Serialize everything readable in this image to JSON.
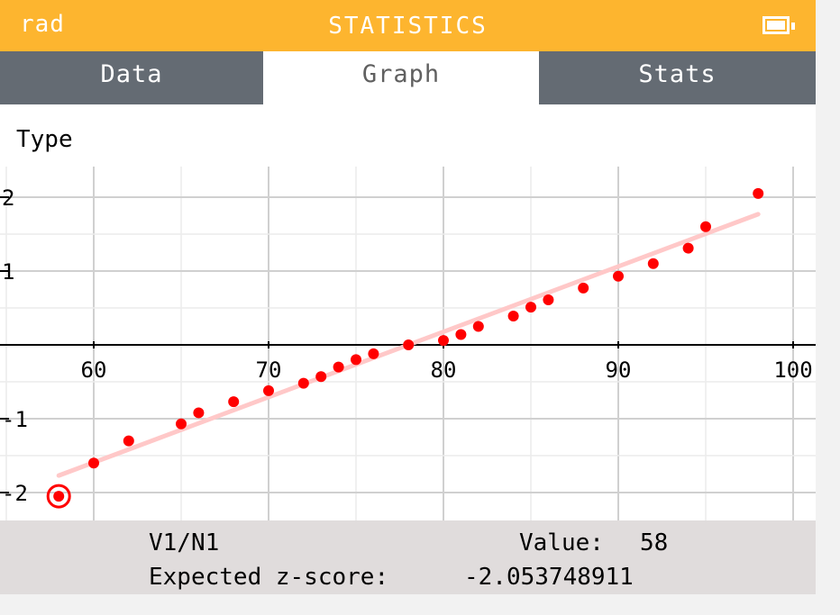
{
  "status_bar": {
    "mode": "rad",
    "title": "STATISTICS",
    "battery_icon": "battery-full-icon"
  },
  "tabs": [
    {
      "label": "Data",
      "active": false
    },
    {
      "label": "Graph",
      "active": true
    },
    {
      "label": "Stats",
      "active": false
    }
  ],
  "graph": {
    "type_label": "Type"
  },
  "chart_data": {
    "type": "scatter",
    "x_ticks": [
      60,
      70,
      80,
      90,
      100
    ],
    "x_tick_labels": [
      "60",
      "70",
      "80",
      "90",
      "100"
    ],
    "y_ticks": [
      -2,
      -1,
      1,
      2
    ],
    "y_tick_labels": [
      "-2",
      "-1",
      "1",
      "2"
    ],
    "xlim": [
      55,
      101
    ],
    "ylim": [
      -2.4,
      2.4
    ],
    "grid": true,
    "points": [
      [
        58,
        -2.05
      ],
      [
        60,
        -1.6
      ],
      [
        62,
        -1.3
      ],
      [
        65,
        -1.07
      ],
      [
        66,
        -0.92
      ],
      [
        68,
        -0.77
      ],
      [
        70,
        -0.62
      ],
      [
        72,
        -0.52
      ],
      [
        73,
        -0.43
      ],
      [
        74,
        -0.3
      ],
      [
        75,
        -0.2
      ],
      [
        76,
        -0.12
      ],
      [
        78,
        0.0
      ],
      [
        80,
        0.06
      ],
      [
        81,
        0.14
      ],
      [
        82,
        0.25
      ],
      [
        84,
        0.39
      ],
      [
        85,
        0.51
      ],
      [
        86,
        0.61
      ],
      [
        88,
        0.77
      ],
      [
        90,
        0.93
      ],
      [
        92,
        1.1
      ],
      [
        94,
        1.31
      ],
      [
        95,
        1.6
      ],
      [
        98,
        2.05
      ]
    ],
    "fit_line": {
      "x": [
        58,
        98
      ],
      "y": [
        -1.77,
        1.77
      ]
    },
    "selected_index": 0,
    "point_color": "#ff0000",
    "line_color": "#ffc8c8"
  },
  "info": {
    "series": "V1/N1",
    "value_label": "Value:",
    "value": "58",
    "z_label": "Expected z-score:",
    "z_value": "-2.053748911"
  }
}
